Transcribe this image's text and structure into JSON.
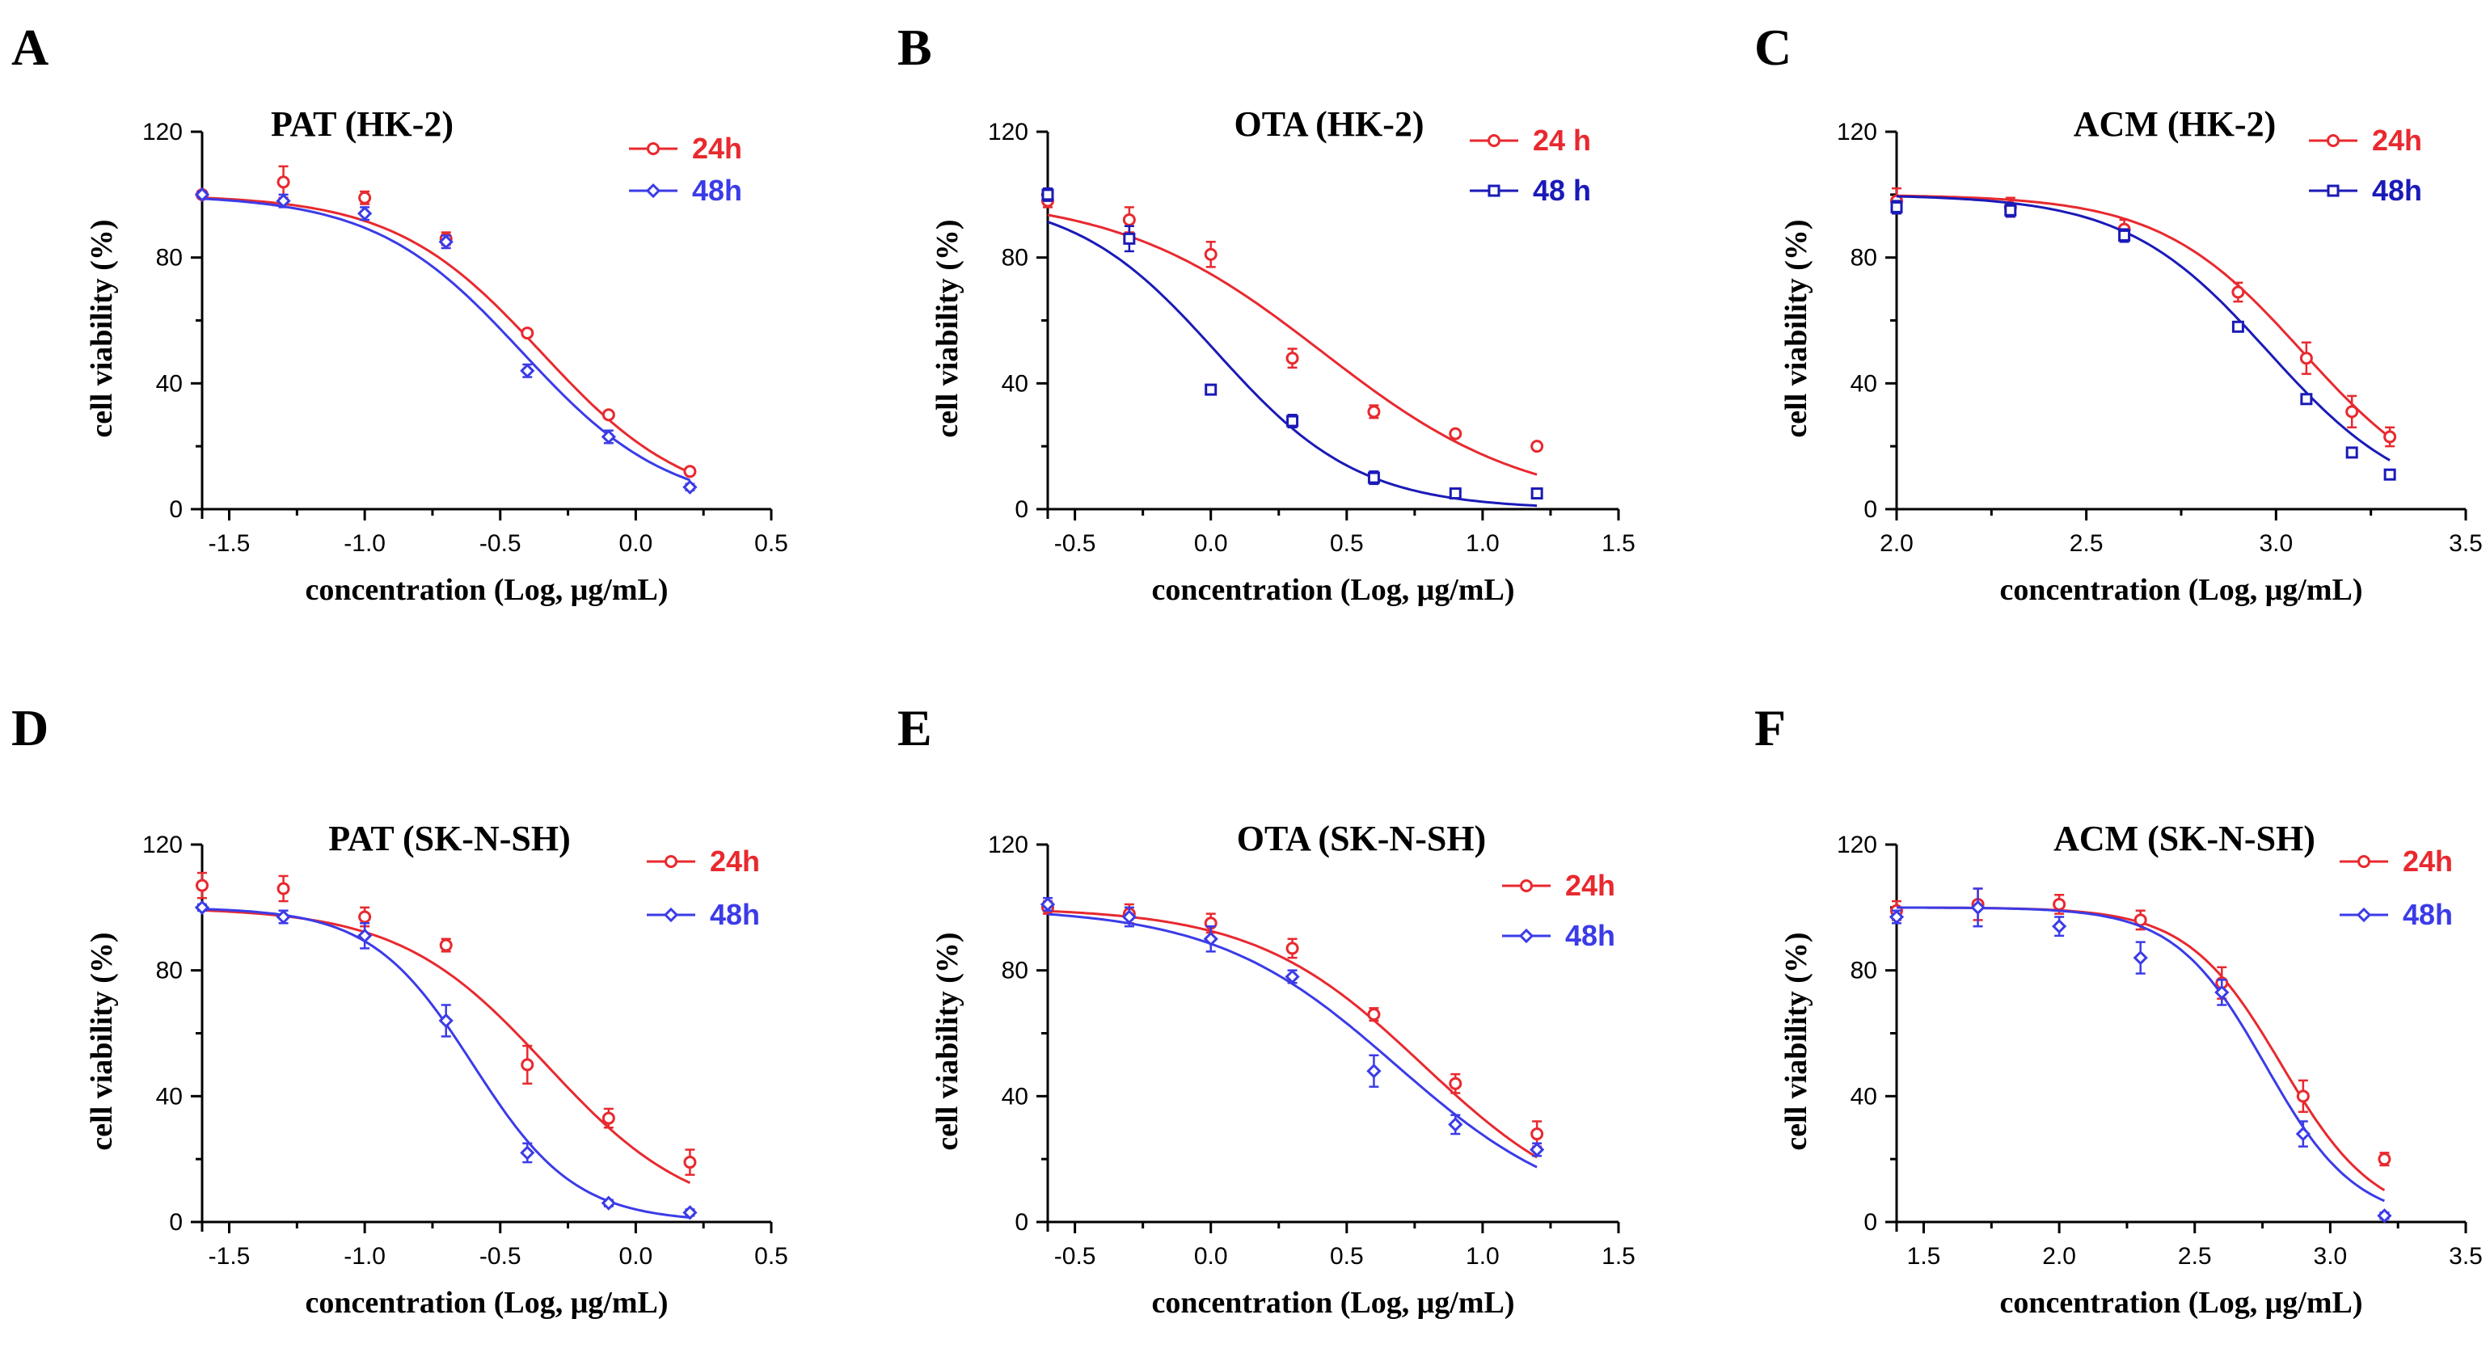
{
  "chart_data": [
    {
      "panel": "A",
      "type": "scatter",
      "title": "PAT (HK-2)",
      "xlabel": "concentration (Log, μg/mL)",
      "ylabel": "cell viability (%)",
      "xlim": [
        -1.6,
        0.5
      ],
      "ylim": [
        0,
        120
      ],
      "xticks": [
        -1.5,
        -1.0,
        -0.5,
        0.0,
        0.5
      ],
      "xtick_labels": [
        "-1.5",
        "-1.0",
        "-0.5",
        "0.0",
        "0.5"
      ],
      "yticks": [
        0,
        40,
        80,
        120
      ],
      "ytick_labels": [
        "0",
        "40",
        "80",
        "120"
      ],
      "series": [
        {
          "name": "24h",
          "color": "#e8292f",
          "marker": "circle",
          "x": [
            -1.6,
            -1.3,
            -1.0,
            -0.7,
            -0.4,
            -0.1,
            0.2
          ],
          "y": [
            100,
            104,
            99,
            86,
            56,
            30,
            12
          ],
          "err": [
            1,
            5,
            2,
            2,
            1,
            1,
            1
          ],
          "fit": {
            "top": 100,
            "bottom": 0,
            "logIC50": -0.35,
            "hill": 1.6
          }
        },
        {
          "name": "48h",
          "color": "#3b3be8",
          "marker": "diamond",
          "x": [
            -1.6,
            -1.3,
            -1.0,
            -0.7,
            -0.4,
            -0.1,
            0.2
          ],
          "y": [
            100,
            98,
            94,
            85,
            44,
            23,
            7
          ],
          "err": [
            1,
            2,
            2,
            2,
            2,
            2,
            1
          ],
          "fit": {
            "top": 100,
            "bottom": 0,
            "logIC50": -0.42,
            "hill": 1.6
          }
        }
      ]
    },
    {
      "panel": "B",
      "type": "scatter",
      "title": "OTA (HK-2)",
      "xlabel": "concentration (Log, μg/mL)",
      "ylabel": "cell viability (%)",
      "xlim": [
        -0.6,
        1.5
      ],
      "ylim": [
        0,
        120
      ],
      "xticks": [
        -0.5,
        0.0,
        0.5,
        1.0,
        1.5
      ],
      "xtick_labels": [
        "-0.5",
        "0.0",
        "0.5",
        "1.0",
        "1.5"
      ],
      "yticks": [
        0,
        40,
        80,
        120
      ],
      "ytick_labels": [
        "0",
        "40",
        "80",
        "120"
      ],
      "series": [
        {
          "name": "24 h",
          "color": "#e8292f",
          "marker": "circle",
          "x": [
            -0.6,
            -0.3,
            0.0,
            0.3,
            0.6,
            0.9,
            1.2
          ],
          "y": [
            98,
            92,
            81,
            48,
            31,
            24,
            20
          ],
          "err": [
            2,
            4,
            4,
            3,
            2,
            1,
            1
          ],
          "fit": {
            "top": 100,
            "bottom": 0,
            "logIC50": 0.41,
            "hill": 1.15
          }
        },
        {
          "name": "48 h",
          "color": "#1a1ab8",
          "marker": "square",
          "x": [
            -0.6,
            -0.3,
            0.0,
            0.3,
            0.6,
            0.9,
            1.2
          ],
          "y": [
            100,
            86,
            38,
            28,
            10,
            5,
            5
          ],
          "err": [
            2,
            4,
            1,
            2,
            2,
            1,
            1
          ],
          "fit": {
            "top": 100,
            "bottom": 0,
            "logIC50": 0.02,
            "hill": 1.65
          }
        }
      ]
    },
    {
      "panel": "C",
      "type": "scatter",
      "title": "ACM (HK-2)",
      "xlabel": "concentration (Log, μg/mL)",
      "ylabel": "cell viability (%)",
      "xlim": [
        2.0,
        3.5
      ],
      "ylim": [
        0,
        120
      ],
      "xticks": [
        2.0,
        2.5,
        3.0,
        3.5
      ],
      "xtick_labels": [
        "2.0",
        "2.5",
        "3.0",
        "3.5"
      ],
      "yticks": [
        0,
        40,
        80,
        120
      ],
      "ytick_labels": [
        "0",
        "40",
        "80",
        "120"
      ],
      "series": [
        {
          "name": "24h",
          "color": "#e8292f",
          "marker": "circle",
          "x": [
            2.0,
            2.3,
            2.6,
            2.9,
            3.08,
            3.2,
            3.3
          ],
          "y": [
            98,
            96,
            89,
            69,
            48,
            31,
            23
          ],
          "err": [
            4,
            3,
            3,
            3,
            5,
            5,
            3
          ],
          "fit": {
            "top": 100,
            "bottom": 0,
            "logIC50": 3.07,
            "hill": 2.3
          }
        },
        {
          "name": "48h",
          "color": "#1a1ab8",
          "marker": "square",
          "x": [
            2.0,
            2.3,
            2.6,
            2.9,
            3.08,
            3.2,
            3.3
          ],
          "y": [
            96,
            95,
            87,
            58,
            35,
            18,
            11
          ],
          "err": [
            2,
            2,
            2,
            1,
            1,
            1,
            1
          ],
          "fit": {
            "top": 100,
            "bottom": 0,
            "logIC50": 2.98,
            "hill": 2.3
          }
        }
      ]
    },
    {
      "panel": "D",
      "type": "scatter",
      "title": "PAT (SK-N-SH)",
      "xlabel": "concentration (Log, μg/mL)",
      "ylabel": "cell viability (%)",
      "xlim": [
        -1.6,
        0.5
      ],
      "ylim": [
        0,
        120
      ],
      "xticks": [
        -1.5,
        -1.0,
        -0.5,
        0.0,
        0.5
      ],
      "xtick_labels": [
        "-1.5",
        "-1.0",
        "-0.5",
        "0.0",
        "0.5"
      ],
      "yticks": [
        0,
        40,
        80,
        120
      ],
      "ytick_labels": [
        "0",
        "40",
        "80",
        "120"
      ],
      "series": [
        {
          "name": "24h",
          "color": "#e8292f",
          "marker": "circle",
          "x": [
            -1.6,
            -1.3,
            -1.0,
            -0.7,
            -0.4,
            -0.1,
            0.2
          ],
          "y": [
            107,
            106,
            97,
            88,
            50,
            33,
            19
          ],
          "err": [
            4,
            4,
            3,
            2,
            6,
            3,
            4
          ],
          "fit": {
            "top": 100,
            "bottom": 0,
            "logIC50": -0.33,
            "hill": 1.6
          }
        },
        {
          "name": "48h",
          "color": "#3b3be8",
          "marker": "diamond",
          "x": [
            -1.6,
            -1.3,
            -1.0,
            -0.7,
            -0.4,
            -0.1,
            0.2
          ],
          "y": [
            100,
            97,
            91,
            64,
            22,
            6,
            3
          ],
          "err": [
            1,
            2,
            4,
            5,
            3,
            1,
            1
          ],
          "fit": {
            "top": 100,
            "bottom": 0,
            "logIC50": -0.6,
            "hill": 2.3
          }
        }
      ]
    },
    {
      "panel": "E",
      "type": "scatter",
      "title": "OTA (SK-N-SH)",
      "xlabel": "concentration (Log, μg/mL)",
      "ylabel": "cell viability (%)",
      "xlim": [
        -0.6,
        1.5
      ],
      "ylim": [
        0,
        120
      ],
      "xticks": [
        -0.5,
        0.0,
        0.5,
        1.0,
        1.5
      ],
      "xtick_labels": [
        "-0.5",
        "0.0",
        "0.5",
        "1.0",
        "1.5"
      ],
      "yticks": [
        0,
        40,
        80,
        120
      ],
      "ytick_labels": [
        "0",
        "40",
        "80",
        "120"
      ],
      "series": [
        {
          "name": "24h",
          "color": "#e8292f",
          "marker": "circle",
          "x": [
            -0.6,
            -0.3,
            0.0,
            0.3,
            0.6,
            0.9,
            1.2
          ],
          "y": [
            100,
            98,
            95,
            87,
            66,
            44,
            28
          ],
          "err": [
            2,
            3,
            3,
            3,
            2,
            3,
            4
          ],
          "fit": {
            "top": 100,
            "bottom": 0,
            "logIC50": 0.78,
            "hill": 1.4
          }
        },
        {
          "name": "48h",
          "color": "#3b3be8",
          "marker": "diamond",
          "x": [
            -0.6,
            -0.3,
            0.0,
            0.3,
            0.6,
            0.9,
            1.2
          ],
          "y": [
            101,
            97,
            90,
            78,
            48,
            31,
            23
          ],
          "err": [
            2,
            3,
            4,
            2,
            5,
            3,
            2
          ],
          "fit": {
            "top": 100,
            "bottom": 0,
            "logIC50": 0.68,
            "hill": 1.3
          }
        }
      ]
    },
    {
      "panel": "F",
      "type": "scatter",
      "title": "ACM (SK-N-SH)",
      "xlabel": "concentration (Log, μg/mL)",
      "ylabel": "cell viability (%)",
      "xlim": [
        1.4,
        3.5
      ],
      "ylim": [
        0,
        120
      ],
      "xticks": [
        1.5,
        2.0,
        2.5,
        3.0,
        3.5
      ],
      "xtick_labels": [
        "1.5",
        "2.0",
        "2.5",
        "3.0",
        "3.5"
      ],
      "yticks": [
        0,
        40,
        80,
        120
      ],
      "ytick_labels": [
        "0",
        "40",
        "80",
        "120"
      ],
      "series": [
        {
          "name": "24h",
          "color": "#e8292f",
          "marker": "circle",
          "x": [
            1.4,
            1.7,
            2.0,
            2.3,
            2.6,
            2.9,
            3.2
          ],
          "y": [
            99,
            101,
            101,
            96,
            76,
            40,
            20
          ],
          "err": [
            3,
            5,
            3,
            3,
            5,
            5,
            2
          ],
          "fit": {
            "top": 100,
            "bottom": 0,
            "logIC50": 2.82,
            "hill": 2.5
          }
        },
        {
          "name": "48h",
          "color": "#3b3be8",
          "marker": "diamond",
          "x": [
            1.4,
            1.7,
            2.0,
            2.3,
            2.6,
            2.9,
            3.2
          ],
          "y": [
            97,
            100,
            94,
            84,
            73,
            28,
            2
          ],
          "err": [
            2,
            6,
            3,
            5,
            4,
            4,
            1
          ],
          "fit": {
            "top": 100,
            "bottom": 0,
            "logIC50": 2.76,
            "hill": 2.6
          }
        }
      ]
    }
  ]
}
